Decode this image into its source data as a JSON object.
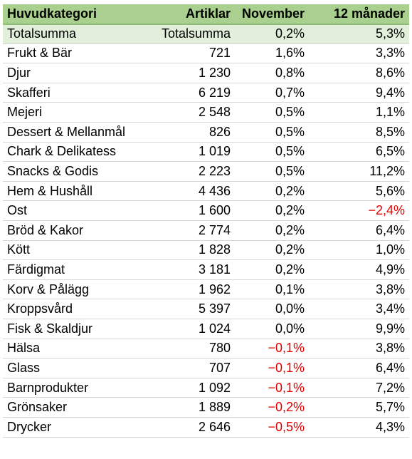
{
  "headers": [
    "Huvudkategori",
    "Artiklar",
    "November",
    "12 månader"
  ],
  "total": {
    "name": "Totalsumma",
    "articles": "Totalsumma",
    "november": "0,2%",
    "months12": "5,3%"
  },
  "rows": [
    {
      "name": "Frukt & Bär",
      "articles": "721",
      "november": "1,6%",
      "months12": "3,3%"
    },
    {
      "name": "Djur",
      "articles": "1 230",
      "november": "0,8%",
      "months12": "8,6%"
    },
    {
      "name": "Skafferi",
      "articles": "6 219",
      "november": "0,7%",
      "months12": "9,4%"
    },
    {
      "name": "Mejeri",
      "articles": "2 548",
      "november": "0,5%",
      "months12": "1,1%"
    },
    {
      "name": "Dessert & Mellanmål",
      "articles": "826",
      "november": "0,5%",
      "months12": "8,5%"
    },
    {
      "name": "Chark & Delikatess",
      "articles": "1 019",
      "november": "0,5%",
      "months12": "6,5%"
    },
    {
      "name": "Snacks & Godis",
      "articles": "2 223",
      "november": "0,5%",
      "months12": "11,2%"
    },
    {
      "name": "Hem & Hushåll",
      "articles": "4 436",
      "november": "0,2%",
      "months12": "5,6%"
    },
    {
      "name": "Ost",
      "articles": "1 600",
      "november": "0,2%",
      "months12": "−2,4%"
    },
    {
      "name": "Bröd & Kakor",
      "articles": "2 774",
      "november": "0,2%",
      "months12": "6,4%"
    },
    {
      "name": "Kött",
      "articles": "1 828",
      "november": "0,2%",
      "months12": "1,0%"
    },
    {
      "name": "Färdigmat",
      "articles": "3 181",
      "november": "0,2%",
      "months12": "4,9%"
    },
    {
      "name": "Korv & Pålägg",
      "articles": "1 962",
      "november": "0,1%",
      "months12": "3,8%"
    },
    {
      "name": "Kroppsvård",
      "articles": "5 397",
      "november": "0,0%",
      "months12": "3,4%"
    },
    {
      "name": "Fisk & Skaldjur",
      "articles": "1 024",
      "november": "0,0%",
      "months12": "9,9%"
    },
    {
      "name": "Hälsa",
      "articles": "780",
      "november": "−0,1%",
      "months12": "3,8%"
    },
    {
      "name": "Glass",
      "articles": "707",
      "november": "−0,1%",
      "months12": "6,4%"
    },
    {
      "name": "Barnprodukter",
      "articles": "1 092",
      "november": "−0,1%",
      "months12": "7,2%"
    },
    {
      "name": "Grönsaker",
      "articles": "1 889",
      "november": "−0,2%",
      "months12": "5,7%"
    },
    {
      "name": "Drycker",
      "articles": "2 646",
      "november": "−0,5%",
      "months12": "4,3%"
    }
  ],
  "colors": {
    "header_bg": "#a9d08e",
    "total_bg": "#e2efda",
    "negative": "#e00000"
  }
}
